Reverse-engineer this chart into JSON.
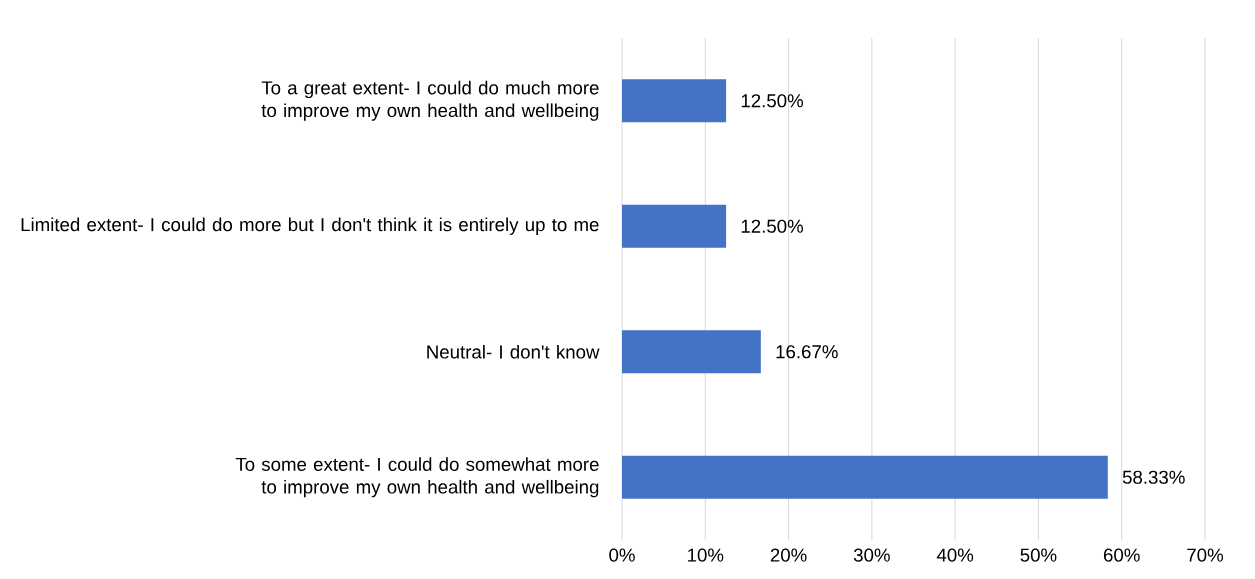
{
  "chart_data": {
    "type": "bar",
    "orientation": "horizontal",
    "categories": [
      "To a great extent- I could do much more to improve my own health and wellbeing",
      "Limited extent- I could do more but I don't think it is entirely up to me",
      "Neutral- I don't know",
      "To some extent- I could do somewhat more to improve my own health and wellbeing"
    ],
    "values": [
      12.5,
      12.5,
      16.67,
      58.33
    ],
    "value_labels": [
      "12.50%",
      "12.50%",
      "16.67%",
      "58.33%"
    ],
    "color": "#4472c4",
    "xlim": [
      0,
      70
    ],
    "xticks": [
      {
        "value": 0,
        "label": "0%"
      },
      {
        "value": 10,
        "label": "10%"
      },
      {
        "value": 20,
        "label": "20%"
      },
      {
        "value": 30,
        "label": "30%"
      },
      {
        "value": 40,
        "label": "40%"
      },
      {
        "value": 50,
        "label": "50%"
      },
      {
        "value": 60,
        "label": "60%"
      },
      {
        "value": 70,
        "label": "70%"
      }
    ],
    "grid": "x"
  }
}
